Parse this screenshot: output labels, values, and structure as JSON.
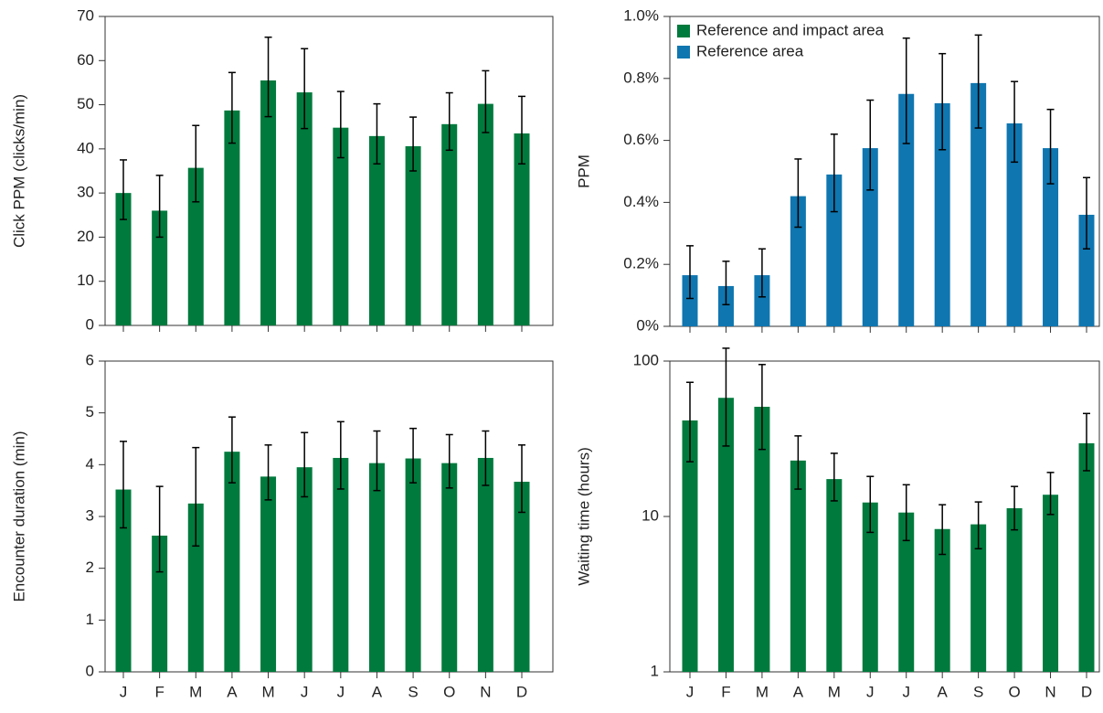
{
  "chart_data": [
    {
      "type": "bar",
      "ylabel": "Click PPM (clicks/min)",
      "color": "#007a3d",
      "values": [
        30,
        26,
        35.7,
        48.7,
        55.5,
        52.8,
        44.8,
        42.9,
        40.6,
        45.6,
        50.2,
        43.5
      ],
      "lower": [
        24,
        20,
        28,
        41.3,
        47.3,
        44.6,
        38,
        36.6,
        35,
        39.7,
        43.7,
        36.6
      ],
      "upper": [
        37.5,
        34,
        45.3,
        57.3,
        65.3,
        62.7,
        53,
        50.2,
        47.2,
        52.7,
        57.7,
        51.9
      ],
      "ylim": [
        0,
        70
      ],
      "yticks": [
        0,
        10,
        20,
        30,
        40,
        50,
        60,
        70
      ]
    },
    {
      "type": "bar",
      "ylabel": "PPM",
      "color": "#0f76b0",
      "values": [
        0.165,
        0.13,
        0.165,
        0.42,
        0.49,
        0.575,
        0.75,
        0.72,
        0.785,
        0.655,
        0.575,
        0.36
      ],
      "lower": [
        0.09,
        0.07,
        0.095,
        0.32,
        0.37,
        0.44,
        0.59,
        0.57,
        0.64,
        0.53,
        0.46,
        0.25
      ],
      "upper": [
        0.26,
        0.21,
        0.25,
        0.54,
        0.62,
        0.73,
        0.93,
        0.88,
        0.94,
        0.79,
        0.7,
        0.48
      ],
      "ylim": [
        0,
        1.0
      ],
      "yticks": [
        {
          "value": 0,
          "label": "0%"
        },
        {
          "value": 0.2,
          "label": "0.2%"
        },
        {
          "value": 0.4,
          "label": "0.4%"
        },
        {
          "value": 0.6,
          "label": "0.6%"
        },
        {
          "value": 0.8,
          "label": "0.8%"
        },
        {
          "value": 1.0,
          "label": "1.0%"
        }
      ],
      "legend": [
        {
          "name": "Reference and impact area",
          "color": "#007a3d"
        },
        {
          "name": "Reference area",
          "color": "#0f76b0"
        }
      ]
    },
    {
      "type": "bar",
      "ylabel": "Encounter duration (min)",
      "color": "#007a3d",
      "categories": [
        "J",
        "F",
        "M",
        "A",
        "M",
        "J",
        "J",
        "A",
        "S",
        "O",
        "N",
        "D"
      ],
      "values": [
        3.52,
        2.63,
        3.25,
        4.25,
        3.77,
        3.95,
        4.13,
        4.03,
        4.12,
        4.03,
        4.13,
        3.67
      ],
      "lower": [
        2.78,
        1.93,
        2.43,
        3.65,
        3.32,
        3.38,
        3.53,
        3.5,
        3.65,
        3.55,
        3.6,
        3.08
      ],
      "upper": [
        4.45,
        3.58,
        4.33,
        4.92,
        4.38,
        4.62,
        4.83,
        4.65,
        4.7,
        4.58,
        4.65,
        4.38
      ],
      "ylim": [
        0,
        6
      ],
      "yticks": [
        0,
        1,
        2,
        3,
        4,
        5,
        6
      ]
    },
    {
      "type": "bar",
      "ylabel": "Waiting time (hours)",
      "color": "#007a3d",
      "log": true,
      "categories": [
        "J",
        "F",
        "M",
        "A",
        "M",
        "J",
        "J",
        "A",
        "S",
        "O",
        "N",
        "D"
      ],
      "values": [
        41.5,
        58,
        50.8,
        22.9,
        17.4,
        12.3,
        10.6,
        8.3,
        8.9,
        11.3,
        13.8,
        29.6
      ],
      "lower": [
        22.5,
        28.4,
        27,
        15,
        12.6,
        7.9,
        7.0,
        5.7,
        6.2,
        8.2,
        10.3,
        19.7
      ],
      "upper": [
        73,
        121,
        95,
        33,
        25.5,
        18.1,
        16,
        11.9,
        12.4,
        15.6,
        19.2,
        46
      ],
      "ylim": [
        1,
        100
      ],
      "yticks": [
        1,
        10,
        100
      ]
    }
  ]
}
